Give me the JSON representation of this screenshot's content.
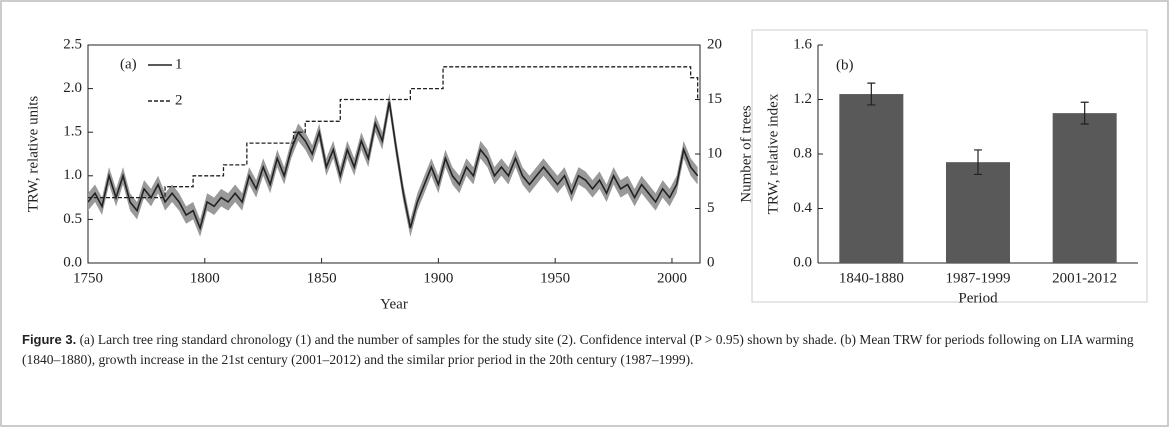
{
  "chart_data": [
    {
      "type": "line",
      "panel": "(a)",
      "xlabel": "Year",
      "ylabel": "TRW, relative units",
      "y2label": "Number of trees",
      "xlim": [
        1750,
        2012
      ],
      "xticks": [
        1750,
        1800,
        1850,
        1900,
        1950,
        2000
      ],
      "ylim": [
        0,
        2.5
      ],
      "yticks": [
        {
          "value": 0,
          "label": "0.0"
        },
        0.5,
        {
          "value": 1,
          "label": "1.0"
        },
        1.5,
        {
          "value": 2,
          "label": "2.0"
        },
        2.5
      ],
      "y2lim": [
        0,
        20
      ],
      "y2ticks": [
        0,
        5,
        10,
        15,
        20
      ],
      "legend": "upper left",
      "band_color": "#999999",
      "ci_band": {
        "x": [
          1750,
          1753,
          1756,
          1759,
          1762,
          1765,
          1768,
          1771,
          1774,
          1777,
          1780,
          1783,
          1786,
          1789,
          1792,
          1795,
          1798,
          1801,
          1804,
          1807,
          1810,
          1813,
          1816,
          1819,
          1822,
          1825,
          1828,
          1831,
          1834,
          1837,
          1840,
          1843,
          1846,
          1849,
          1852,
          1855,
          1858,
          1861,
          1864,
          1867,
          1870,
          1873,
          1876,
          1879,
          1882,
          1885,
          1888,
          1891,
          1894,
          1897,
          1900,
          1903,
          1906,
          1909,
          1912,
          1915,
          1918,
          1921,
          1924,
          1927,
          1930,
          1933,
          1936,
          1939,
          1942,
          1945,
          1948,
          1951,
          1954,
          1957,
          1960,
          1963,
          1966,
          1969,
          1972,
          1975,
          1978,
          1981,
          1984,
          1987,
          1990,
          1993,
          1996,
          1999,
          2002,
          2005,
          2008,
          2011
        ],
        "upper": [
          0.8,
          0.9,
          0.75,
          1.1,
          0.85,
          1.1,
          0.8,
          0.7,
          0.95,
          0.85,
          1.0,
          0.8,
          0.9,
          0.8,
          0.65,
          0.7,
          0.5,
          0.8,
          0.75,
          0.85,
          0.8,
          0.9,
          0.8,
          1.1,
          0.95,
          1.2,
          1.0,
          1.3,
          1.1,
          1.4,
          1.6,
          1.5,
          1.35,
          1.6,
          1.2,
          1.4,
          1.1,
          1.4,
          1.2,
          1.5,
          1.3,
          1.7,
          1.5,
          1.95,
          1.4,
          0.9,
          0.5,
          0.8,
          1.0,
          1.2,
          1.0,
          1.3,
          1.1,
          1.0,
          1.2,
          1.1,
          1.4,
          1.3,
          1.1,
          1.2,
          1.1,
          1.3,
          1.1,
          1.0,
          1.1,
          1.2,
          1.1,
          1.0,
          1.1,
          0.9,
          1.1,
          1.05,
          0.95,
          1.05,
          0.9,
          1.1,
          0.95,
          1.0,
          0.85,
          1.0,
          0.9,
          0.8,
          0.95,
          0.85,
          1.0,
          1.4,
          1.2,
          1.1
        ],
        "lower": [
          0.6,
          0.7,
          0.55,
          0.9,
          0.65,
          0.9,
          0.6,
          0.5,
          0.75,
          0.65,
          0.8,
          0.6,
          0.7,
          0.6,
          0.45,
          0.5,
          0.3,
          0.6,
          0.55,
          0.65,
          0.6,
          0.7,
          0.6,
          0.9,
          0.75,
          1.0,
          0.8,
          1.1,
          0.9,
          1.2,
          1.4,
          1.3,
          1.15,
          1.4,
          1.0,
          1.2,
          0.9,
          1.2,
          1.0,
          1.3,
          1.1,
          1.5,
          1.3,
          1.75,
          1.2,
          0.7,
          0.3,
          0.6,
          0.8,
          1.0,
          0.8,
          1.1,
          0.9,
          0.8,
          1.0,
          0.9,
          1.2,
          1.1,
          0.9,
          1.0,
          0.9,
          1.1,
          0.9,
          0.8,
          0.9,
          1.0,
          0.9,
          0.8,
          0.9,
          0.7,
          0.9,
          0.85,
          0.75,
          0.85,
          0.7,
          0.9,
          0.75,
          0.8,
          0.65,
          0.8,
          0.7,
          0.6,
          0.75,
          0.65,
          0.8,
          1.2,
          1.0,
          0.9
        ]
      },
      "series": [
        {
          "name": "1",
          "color": "#222222",
          "line_style": "solid",
          "x": [
            1750,
            1753,
            1756,
            1759,
            1762,
            1765,
            1768,
            1771,
            1774,
            1777,
            1780,
            1783,
            1786,
            1789,
            1792,
            1795,
            1798,
            1801,
            1804,
            1807,
            1810,
            1813,
            1816,
            1819,
            1822,
            1825,
            1828,
            1831,
            1834,
            1837,
            1840,
            1843,
            1846,
            1849,
            1852,
            1855,
            1858,
            1861,
            1864,
            1867,
            1870,
            1873,
            1876,
            1879,
            1882,
            1885,
            1888,
            1891,
            1894,
            1897,
            1900,
            1903,
            1906,
            1909,
            1912,
            1915,
            1918,
            1921,
            1924,
            1927,
            1930,
            1933,
            1936,
            1939,
            1942,
            1945,
            1948,
            1951,
            1954,
            1957,
            1960,
            1963,
            1966,
            1969,
            1972,
            1975,
            1978,
            1981,
            1984,
            1987,
            1990,
            1993,
            1996,
            1999,
            2002,
            2005,
            2008,
            2011
          ],
          "values": [
            0.7,
            0.8,
            0.65,
            1.0,
            0.75,
            1.0,
            0.7,
            0.6,
            0.85,
            0.75,
            0.9,
            0.7,
            0.8,
            0.7,
            0.55,
            0.6,
            0.4,
            0.7,
            0.65,
            0.75,
            0.7,
            0.8,
            0.7,
            1.0,
            0.85,
            1.1,
            0.9,
            1.2,
            1.0,
            1.3,
            1.5,
            1.4,
            1.25,
            1.5,
            1.1,
            1.3,
            1.0,
            1.3,
            1.1,
            1.4,
            1.2,
            1.6,
            1.4,
            1.85,
            1.3,
            0.8,
            0.4,
            0.7,
            0.9,
            1.1,
            0.9,
            1.2,
            1.0,
            0.9,
            1.1,
            1.0,
            1.3,
            1.2,
            1.0,
            1.1,
            1.0,
            1.2,
            1.0,
            0.9,
            1.0,
            1.1,
            1.0,
            0.9,
            1.0,
            0.8,
            1.0,
            0.95,
            0.85,
            0.95,
            0.8,
            1.0,
            0.85,
            0.9,
            0.75,
            0.9,
            0.8,
            0.7,
            0.85,
            0.75,
            0.9,
            1.3,
            1.1,
            1.0
          ]
        },
        {
          "name": "2",
          "color": "#222222",
          "line_style": "dashed",
          "drawstyle": "steps-post",
          "axis": "y2",
          "x": [
            1750,
            1783,
            1795,
            1808,
            1818,
            1838,
            1843,
            1858,
            1888,
            1902,
            2008,
            2011
          ],
          "values": [
            6,
            7,
            8,
            9,
            11,
            12,
            13,
            15,
            16,
            18,
            17,
            15
          ]
        }
      ]
    },
    {
      "type": "bar",
      "panel": "(b)",
      "xlabel": "Period",
      "ylabel": "TRW, relative index",
      "categories": [
        "1840-1880",
        "1987-1999",
        "2001-2012"
      ],
      "values": [
        1.24,
        0.74,
        1.1
      ],
      "errors": [
        0.08,
        0.09,
        0.08
      ],
      "color": "#595959",
      "ylim": [
        0,
        1.6
      ],
      "yticks": [
        {
          "value": 0,
          "label": "0.0"
        },
        0.4,
        0.8,
        1.2,
        1.6
      ]
    }
  ],
  "caption": {
    "label": "Figure 3.",
    "text": "(a) Larch tree ring standard chronology (1) and the number of samples for the study site (2). Confidence interval (P > 0.95) shown by shade. (b) Mean TRW for periods following on LIA warming (1840–1880), growth increase in the 21st century (2001–2012) and the similar prior period in the 20th century (1987–1999)."
  }
}
